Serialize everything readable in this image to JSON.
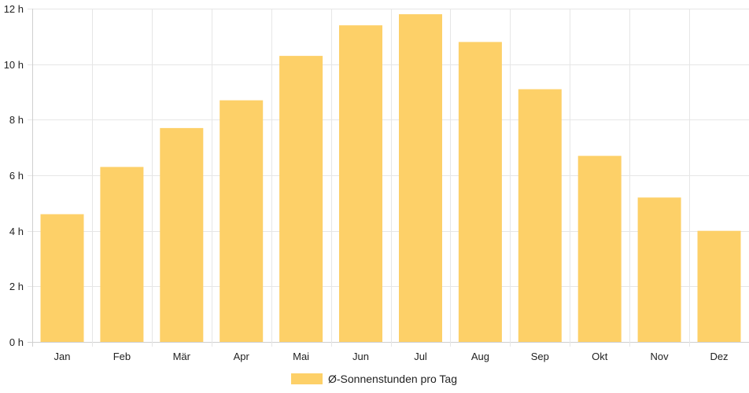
{
  "chart_data": {
    "type": "bar",
    "categories": [
      "Jan",
      "Feb",
      "Mär",
      "Apr",
      "Mai",
      "Jun",
      "Jul",
      "Aug",
      "Sep",
      "Okt",
      "Nov",
      "Dez"
    ],
    "series": [
      {
        "name": "Ø-Sonnenstunden pro Tag",
        "values": [
          4.6,
          6.3,
          7.7,
          8.7,
          10.3,
          11.4,
          11.8,
          10.8,
          9.1,
          6.7,
          5.2,
          4.0
        ],
        "color": "#fdd068"
      }
    ],
    "title": "",
    "xlabel": "",
    "ylabel": "",
    "ylim": [
      0,
      12
    ],
    "yticks": [
      "0 h",
      "2 h",
      "4 h",
      "6 h",
      "8 h",
      "10 h",
      "12 h"
    ],
    "grid": true,
    "legend_position": "bottom-center",
    "gridColor": "#e6e6e6"
  }
}
